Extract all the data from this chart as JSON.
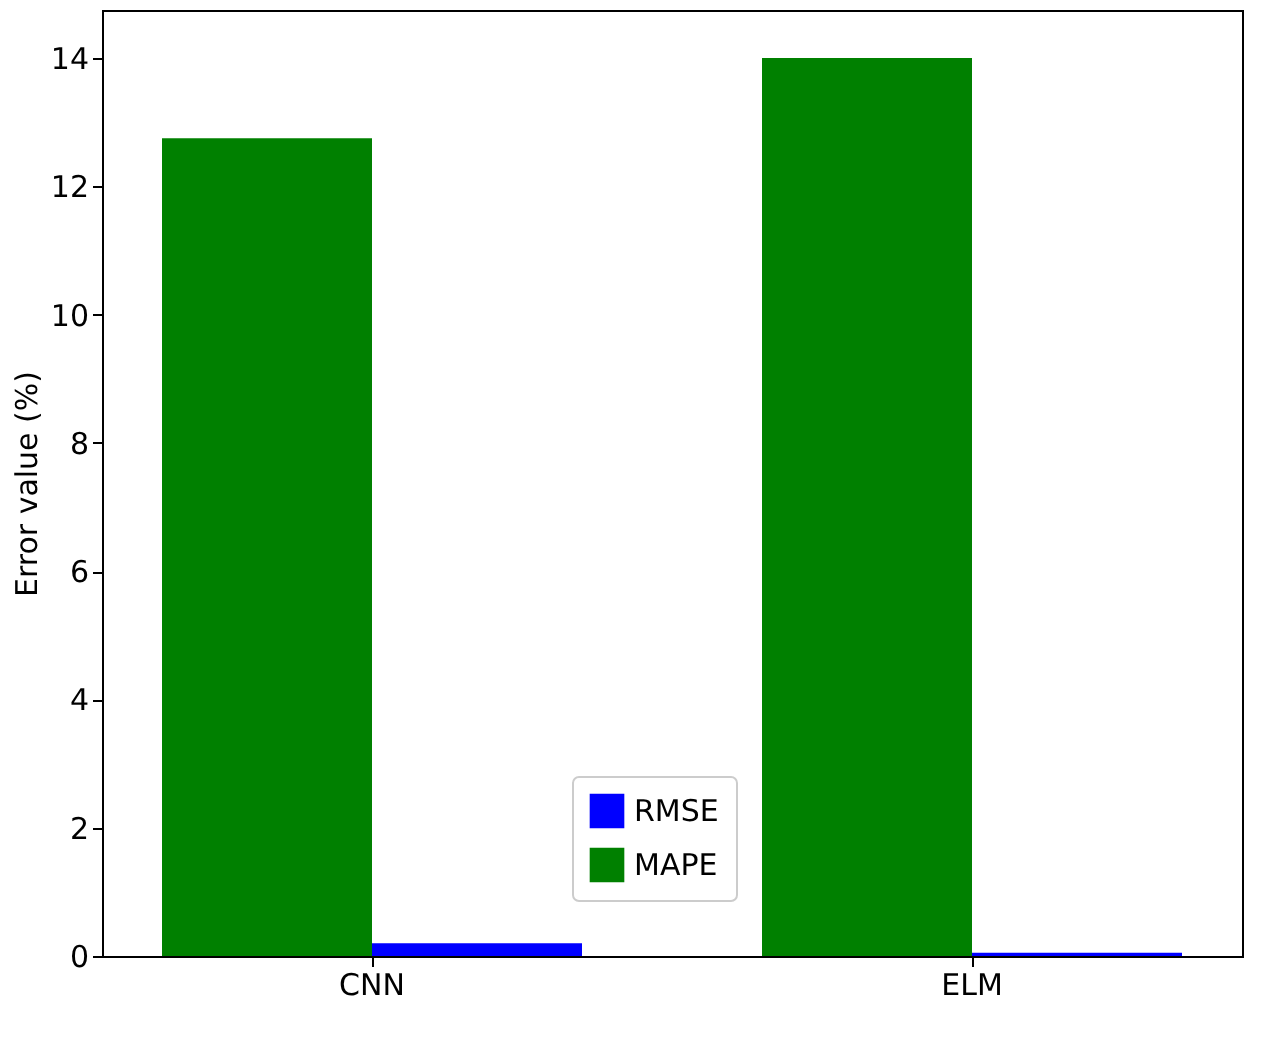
{
  "chart_data": {
    "type": "bar",
    "ylabel": "Error value (%)",
    "categories": [
      "CNN",
      "ELM"
    ],
    "series": [
      {
        "name": "RMSE",
        "color": "#0000ff",
        "values": [
          0.2,
          0.05
        ]
      },
      {
        "name": "MAPE",
        "color": "#008000",
        "values": [
          12.75,
          14.0
        ]
      }
    ],
    "ylim": [
      0,
      14.75
    ],
    "yticks": [
      0,
      2,
      4,
      6,
      8,
      10,
      12,
      14
    ],
    "legend": "bottom",
    "grid": false
  }
}
